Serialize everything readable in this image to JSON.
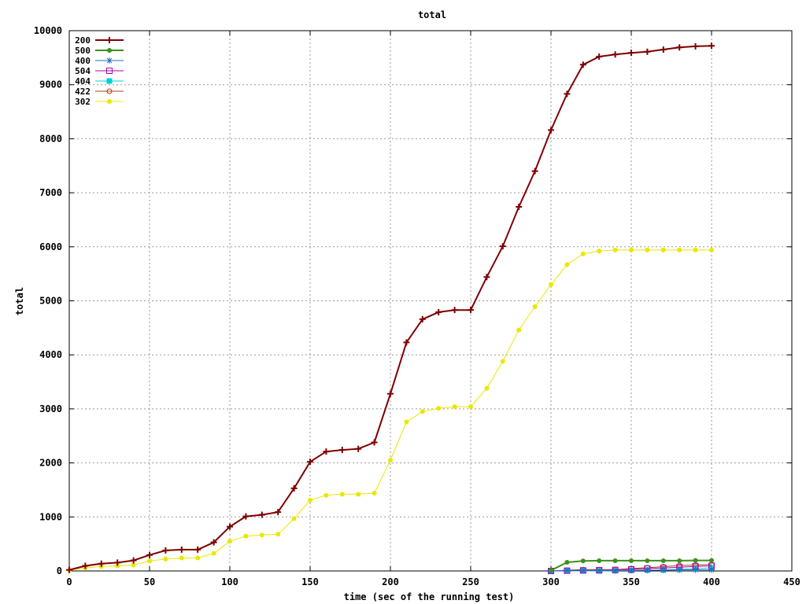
{
  "chart_data": {
    "type": "line",
    "title": "total",
    "xlabel": "time (sec of the running test)",
    "ylabel": "total",
    "xlim": [
      0,
      450
    ],
    "ylim": [
      0,
      10000
    ],
    "xticks": [
      "0",
      "50",
      "100",
      "150",
      "200",
      "250",
      "300",
      "350",
      "400",
      "450"
    ],
    "yticks": [
      "0",
      "1000",
      "2000",
      "3000",
      "4000",
      "5000",
      "6000",
      "7000",
      "8000",
      "9000",
      "10000"
    ],
    "grid": true,
    "legend_position": "top-left",
    "series": [
      {
        "name": "200",
        "color": "#7f0000",
        "marker": "plus",
        "x": [
          0,
          10,
          20,
          30,
          40,
          50,
          60,
          70,
          80,
          90,
          100,
          110,
          120,
          130,
          140,
          150,
          160,
          170,
          180,
          190,
          200,
          210,
          220,
          230,
          240,
          250,
          260,
          270,
          280,
          290,
          300,
          310,
          320,
          330,
          340,
          350,
          360,
          370,
          380,
          390,
          400
        ],
        "y": [
          20,
          95,
          135,
          155,
          195,
          295,
          380,
          395,
          395,
          530,
          820,
          1010,
          1040,
          1090,
          1530,
          2020,
          2210,
          2240,
          2260,
          2380,
          3280,
          4230,
          4660,
          4790,
          4830,
          4830,
          5440,
          6010,
          6740,
          7400,
          8160,
          8830,
          9370,
          9520,
          9560,
          9590,
          9610,
          9650,
          9690,
          9710,
          9720
        ]
      },
      {
        "name": "500",
        "color": "#3c8f1c",
        "marker": "filled-circle",
        "x": [
          300,
          310,
          320,
          330,
          340,
          350,
          360,
          370,
          380,
          390,
          400
        ],
        "y": [
          10,
          160,
          185,
          190,
          190,
          190,
          190,
          190,
          190,
          195,
          195
        ]
      },
      {
        "name": "400",
        "color": "#1f6fbf",
        "marker": "star",
        "x": [
          300,
          310,
          320,
          330,
          340,
          350,
          360,
          370,
          380,
          390,
          400
        ],
        "y": [
          0,
          10,
          10,
          10,
          10,
          12,
          15,
          15,
          20,
          20,
          22
        ]
      },
      {
        "name": "504",
        "color": "#b000b0",
        "marker": "open-square",
        "x": [
          300,
          310,
          320,
          330,
          340,
          350,
          360,
          370,
          380,
          390,
          400
        ],
        "y": [
          0,
          5,
          10,
          15,
          20,
          30,
          45,
          55,
          70,
          85,
          95
        ]
      },
      {
        "name": "404",
        "color": "#00d0d0",
        "marker": "filled-square",
        "x": [
          300,
          310,
          320,
          330,
          340,
          350,
          360,
          370,
          380,
          390,
          400
        ],
        "y": [
          0,
          0,
          0,
          0,
          5,
          10,
          15,
          20,
          30,
          40,
          60
        ]
      },
      {
        "name": "422",
        "color": "#b04010",
        "marker": "open-circle",
        "x": [
          300,
          310,
          320,
          330,
          340,
          350,
          360,
          370,
          380,
          390,
          400
        ],
        "y": [
          0,
          15,
          25,
          25,
          25,
          45,
          60,
          80,
          100,
          110,
          120
        ]
      },
      {
        "name": "302",
        "color": "#e8e800",
        "marker": "filled-circle",
        "x": [
          0,
          10,
          20,
          30,
          40,
          50,
          60,
          70,
          80,
          90,
          100,
          110,
          120,
          130,
          140,
          150,
          160,
          170,
          180,
          190,
          200,
          210,
          220,
          230,
          240,
          250,
          260,
          270,
          280,
          290,
          300,
          310,
          320,
          330,
          340,
          350,
          360,
          370,
          380,
          390,
          400
        ],
        "y": [
          10,
          55,
          85,
          95,
          110,
          185,
          220,
          240,
          240,
          325,
          550,
          645,
          665,
          680,
          970,
          1310,
          1400,
          1420,
          1420,
          1440,
          2050,
          2760,
          2950,
          3010,
          3040,
          3040,
          3380,
          3880,
          4460,
          4890,
          5300,
          5670,
          5870,
          5920,
          5940,
          5940,
          5940,
          5940,
          5940,
          5940,
          5940
        ]
      }
    ]
  }
}
